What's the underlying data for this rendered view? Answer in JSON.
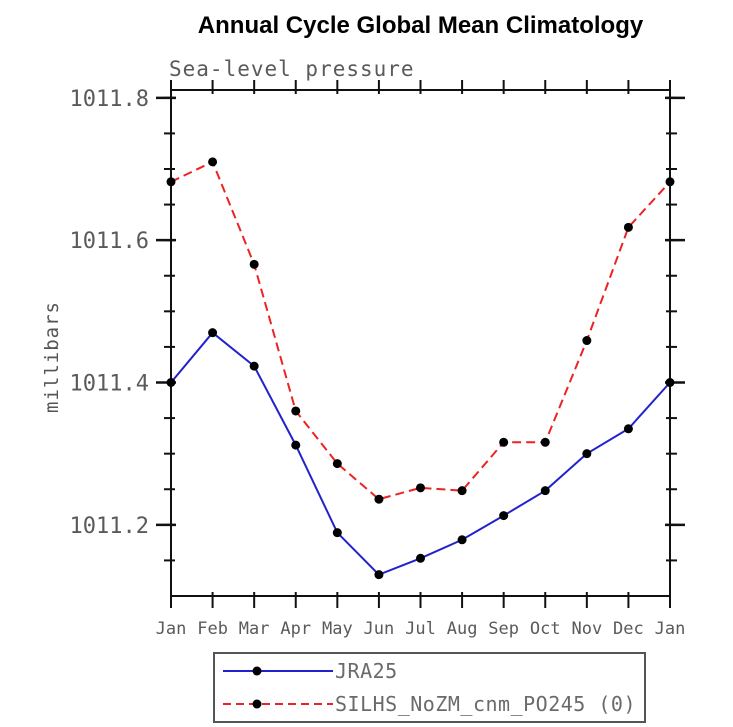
{
  "chart_data": {
    "type": "line",
    "title": "Annual Cycle Global Mean Climatology",
    "subtitle": "Sea-level pressure",
    "ylabel": "millibars",
    "xlabel": "",
    "grid": false,
    "legend_position": "bottom",
    "categories": [
      "Jan",
      "Feb",
      "Mar",
      "Apr",
      "May",
      "Jun",
      "Jul",
      "Aug",
      "Sep",
      "Oct",
      "Nov",
      "Dec",
      "Jan"
    ],
    "series": [
      {
        "name": "JRA25",
        "color": "#2222cc",
        "line_style": "solid",
        "marker": "filled-circle",
        "marker_color": "#000000",
        "values": [
          1011.4,
          1011.47,
          1011.423,
          1011.312,
          1011.189,
          1011.13,
          1011.153,
          1011.179,
          1011.213,
          1011.248,
          1011.3,
          1011.335,
          1011.4
        ]
      },
      {
        "name": "SILHS_NoZM_cnm_PO245 (0)",
        "color": "#ee2222",
        "line_style": "dashed",
        "marker": "filled-circle",
        "marker_color": "#000000",
        "values": [
          1011.682,
          1011.71,
          1011.566,
          1011.36,
          1011.286,
          1011.236,
          1011.252,
          1011.248,
          1011.316,
          1011.316,
          1011.459,
          1011.618,
          1011.682
        ]
      }
    ],
    "ylim": [
      1011.1,
      1011.811
    ],
    "yticks_major": [
      1011.2,
      1011.4,
      1011.6,
      1011.8
    ],
    "ytick_labels": [
      "1011.2",
      "1011.4",
      "1011.6",
      "1011.8"
    ],
    "ytick_minor_step": 0.05,
    "axis_color": "#111111",
    "tick_label_color": "#5a5a5a"
  }
}
